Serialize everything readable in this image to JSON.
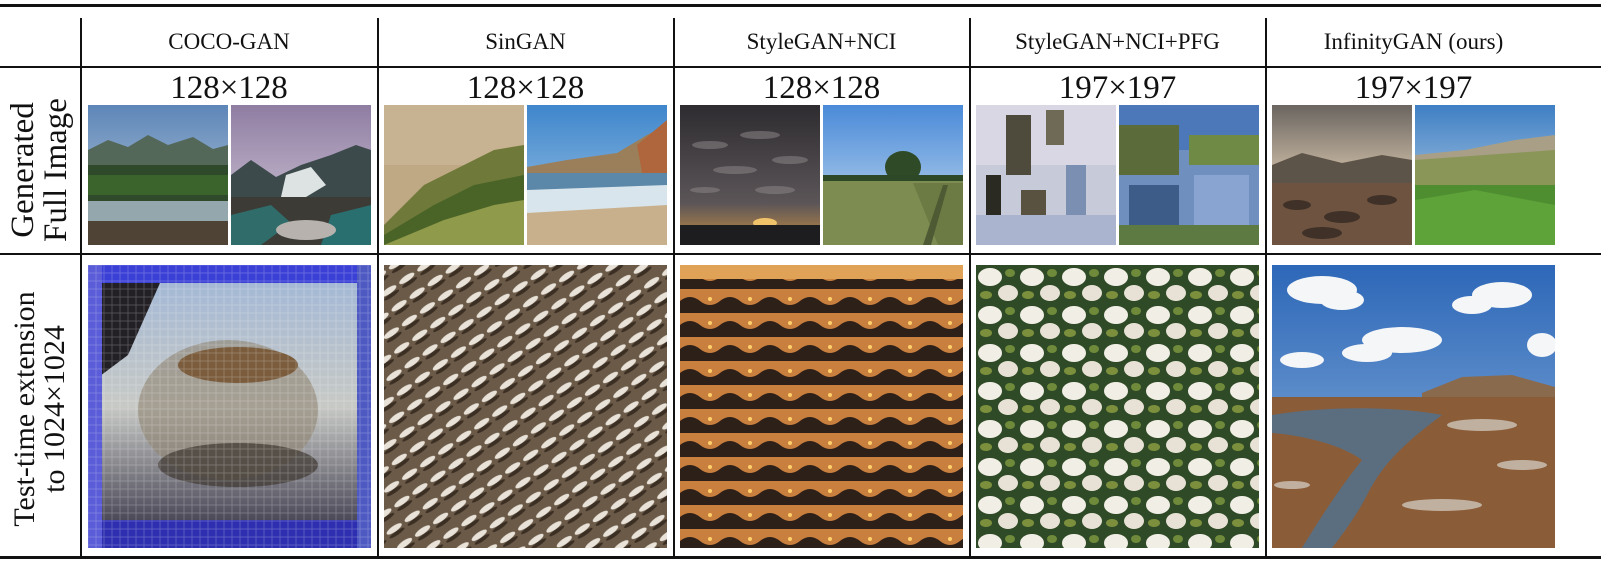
{
  "columns": [
    {
      "header": "COCO-GAN",
      "resolution": "128×128"
    },
    {
      "header": "SinGAN",
      "resolution": "128×128"
    },
    {
      "header": "StyleGAN+NCI",
      "resolution": "128×128"
    },
    {
      "header": "StyleGAN+NCI+PFG",
      "resolution": "197×197"
    },
    {
      "header": "InfinityGAN (ours)",
      "resolution": "197×197"
    }
  ],
  "rows": [
    {
      "label_line1": "Generated",
      "label_line2": "Full Image"
    },
    {
      "label_line1": "Test-time extension",
      "label_line2": "to 1024×1024"
    }
  ]
}
